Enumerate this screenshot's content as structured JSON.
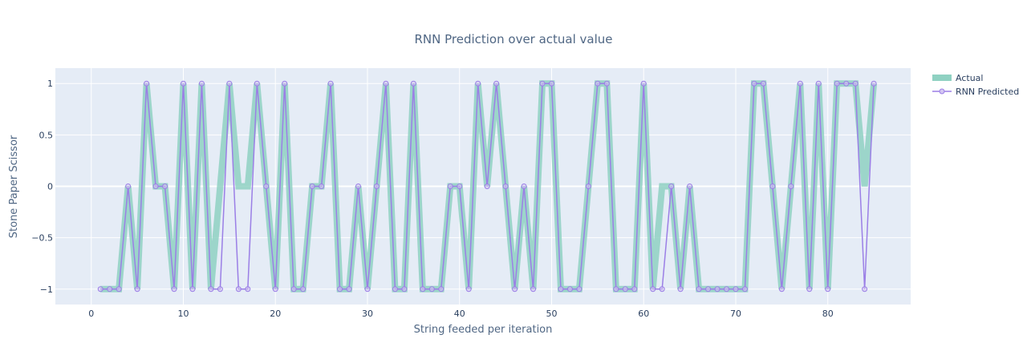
{
  "colors": {
    "background": "#ffffff",
    "plot_background": "#e5ecf6",
    "grid": "#ffffff",
    "actual": "#8fd1c2",
    "predicted": "#9b7fe6"
  },
  "chart_data": {
    "type": "line",
    "title": "RNN Prediction over actual value",
    "xlabel": "String feeded per iteration",
    "ylabel": "Stone Paper Scissor",
    "xlim": [
      -3.9,
      89
    ],
    "ylim": [
      -1.15,
      1.15
    ],
    "x_ticks": [
      0,
      10,
      20,
      30,
      40,
      50,
      60,
      70,
      80
    ],
    "x_tick_labels": [
      "0",
      "10",
      "20",
      "30",
      "40",
      "50",
      "60",
      "70",
      "80"
    ],
    "y_ticks": [
      1,
      0.5,
      0,
      -0.5,
      -1
    ],
    "y_tick_labels": [
      "1",
      "0.5",
      "0",
      "−0.5",
      "−1"
    ],
    "grid": true,
    "legend_position": "top-right",
    "x": [
      1,
      2,
      3,
      4,
      5,
      6,
      7,
      8,
      9,
      10,
      11,
      12,
      13,
      14,
      15,
      16,
      17,
      18,
      19,
      20,
      21,
      22,
      23,
      24,
      25,
      26,
      27,
      28,
      29,
      30,
      31,
      32,
      33,
      34,
      35,
      36,
      37,
      38,
      39,
      40,
      41,
      42,
      43,
      44,
      45,
      46,
      47,
      48,
      49,
      50,
      51,
      52,
      53,
      54,
      55,
      56,
      57,
      58,
      59,
      60,
      61,
      62,
      63,
      64,
      65,
      66,
      67,
      68,
      69,
      70,
      71,
      72,
      73,
      74,
      75,
      76,
      77,
      78,
      79,
      80,
      81,
      82,
      83,
      84,
      85
    ],
    "series": [
      {
        "name": "Actual",
        "style": "thick-line",
        "values": [
          -1,
          -1,
          -1,
          0,
          -1,
          1,
          0,
          0,
          -1,
          1,
          -1,
          1,
          -1,
          0,
          1,
          0,
          0,
          1,
          0,
          -1,
          1,
          -1,
          -1,
          0,
          0,
          1,
          -1,
          -1,
          0,
          -1,
          0,
          1,
          -1,
          -1,
          1,
          -1,
          -1,
          -1,
          0,
          0,
          -1,
          1,
          0,
          1,
          0,
          -1,
          0,
          -1,
          1,
          1,
          -1,
          -1,
          -1,
          0,
          1,
          1,
          -1,
          -1,
          -1,
          1,
          -1,
          0,
          0,
          -1,
          0,
          -1,
          -1,
          -1,
          -1,
          -1,
          -1,
          1,
          1,
          0,
          -1,
          0,
          1,
          -1,
          1,
          -1,
          1,
          1,
          1,
          0,
          1
        ]
      },
      {
        "name": "RNN Predicted",
        "style": "line-markers",
        "values": [
          -1,
          -1,
          -1,
          0,
          -1,
          1,
          0,
          0,
          -1,
          1,
          -1,
          1,
          -1,
          -1,
          1,
          -1,
          -1,
          1,
          0,
          -1,
          1,
          -1,
          -1,
          0,
          0,
          1,
          -1,
          -1,
          0,
          -1,
          0,
          1,
          -1,
          -1,
          1,
          -1,
          -1,
          -1,
          0,
          0,
          -1,
          1,
          0,
          1,
          0,
          -1,
          0,
          -1,
          1,
          1,
          -1,
          -1,
          -1,
          0,
          1,
          1,
          -1,
          -1,
          -1,
          1,
          -1,
          -1,
          0,
          -1,
          0,
          -1,
          -1,
          -1,
          -1,
          -1,
          -1,
          1,
          1,
          0,
          -1,
          0,
          1,
          -1,
          1,
          -1,
          1,
          1,
          1,
          -1,
          1
        ]
      }
    ]
  }
}
